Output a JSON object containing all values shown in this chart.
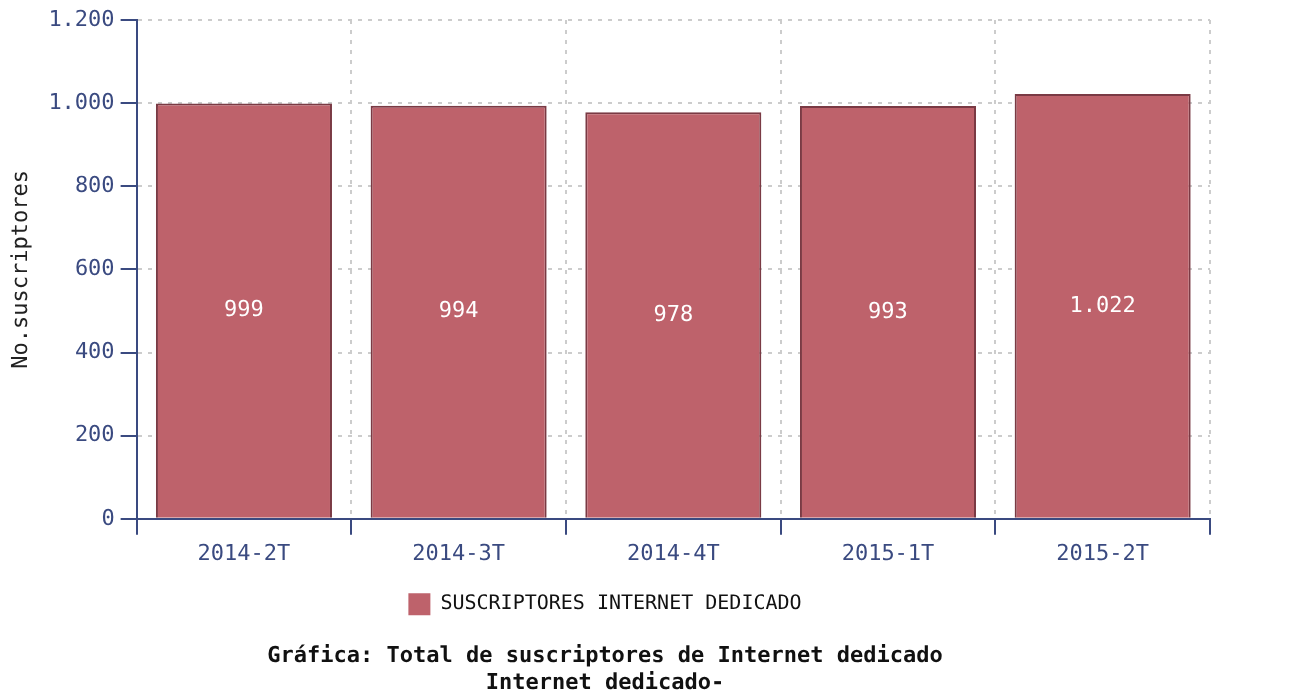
{
  "chart_data": {
    "type": "bar",
    "title": "Gráfica: Total de suscriptores de Internet dedicado",
    "subtitle": "Internet dedicado-",
    "ylabel": "No.suscriptores",
    "categories": [
      "2014-2T",
      "2014-3T",
      "2014-4T",
      "2015-1T",
      "2015-2T"
    ],
    "series": [
      {
        "name": "SUSCRIPTORES INTERNET DEDICADO",
        "color": "#be626b",
        "values": [
          999,
          994,
          978,
          993,
          1022
        ],
        "value_labels": [
          "999",
          "994",
          "978",
          "993",
          "1.022"
        ]
      }
    ],
    "ylim": [
      0,
      1200
    ],
    "yticks": [
      0,
      {
        "value": 200,
        "label": "200"
      },
      {
        "value": 400,
        "label": "400"
      },
      {
        "value": 600,
        "label": "600"
      },
      {
        "value": 800,
        "label": "800"
      },
      {
        "value": 1000,
        "label": "1.000"
      },
      {
        "value": 1200,
        "label": "1.200"
      }
    ],
    "grid": true,
    "legend": "bottom"
  }
}
